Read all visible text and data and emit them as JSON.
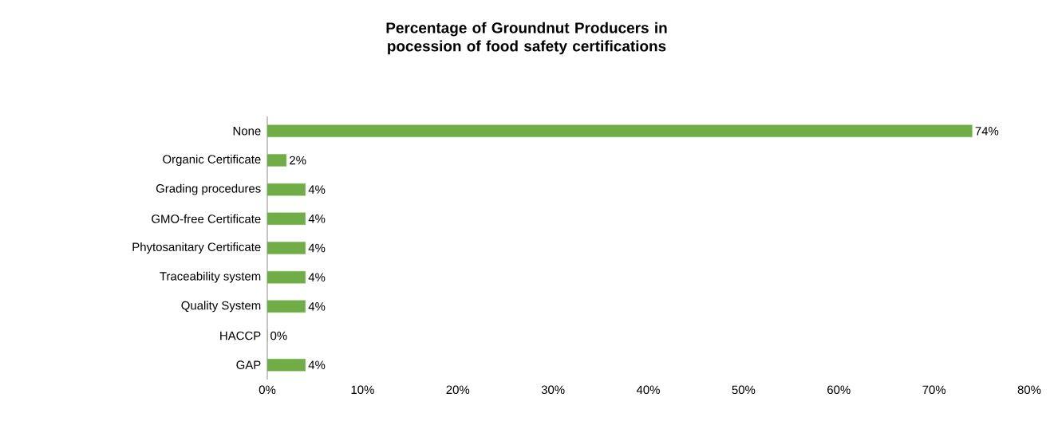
{
  "chart_data": {
    "type": "bar",
    "orientation": "horizontal",
    "title": "Percentage of Groundnut Producers in pocession of food safety certifications",
    "categories": [
      "None",
      "Organic Certificate",
      "Grading procedures",
      "GMO-free Certificate",
      "Phytosanitary Certificate",
      "Traceability system",
      "Quality System",
      "HACCP",
      "GAP"
    ],
    "values": [
      74,
      2,
      4,
      4,
      4,
      4,
      4,
      0,
      4
    ],
    "value_labels": [
      "74%",
      "2%",
      "4%",
      "4%",
      "4%",
      "4%",
      "4%",
      "0%",
      "4%"
    ],
    "color": "#70ad47",
    "xlim": [
      0,
      80
    ],
    "xticks": [
      {
        "value": 0,
        "label": "0%"
      },
      {
        "value": 10,
        "label": "10%"
      },
      {
        "value": 20,
        "label": "20%"
      },
      {
        "value": 30,
        "label": "30%"
      },
      {
        "value": 40,
        "label": "40%"
      },
      {
        "value": 50,
        "label": "50%"
      },
      {
        "value": 60,
        "label": "60%"
      },
      {
        "value": 70,
        "label": "70%"
      },
      {
        "value": 80,
        "label": "80%"
      }
    ]
  }
}
